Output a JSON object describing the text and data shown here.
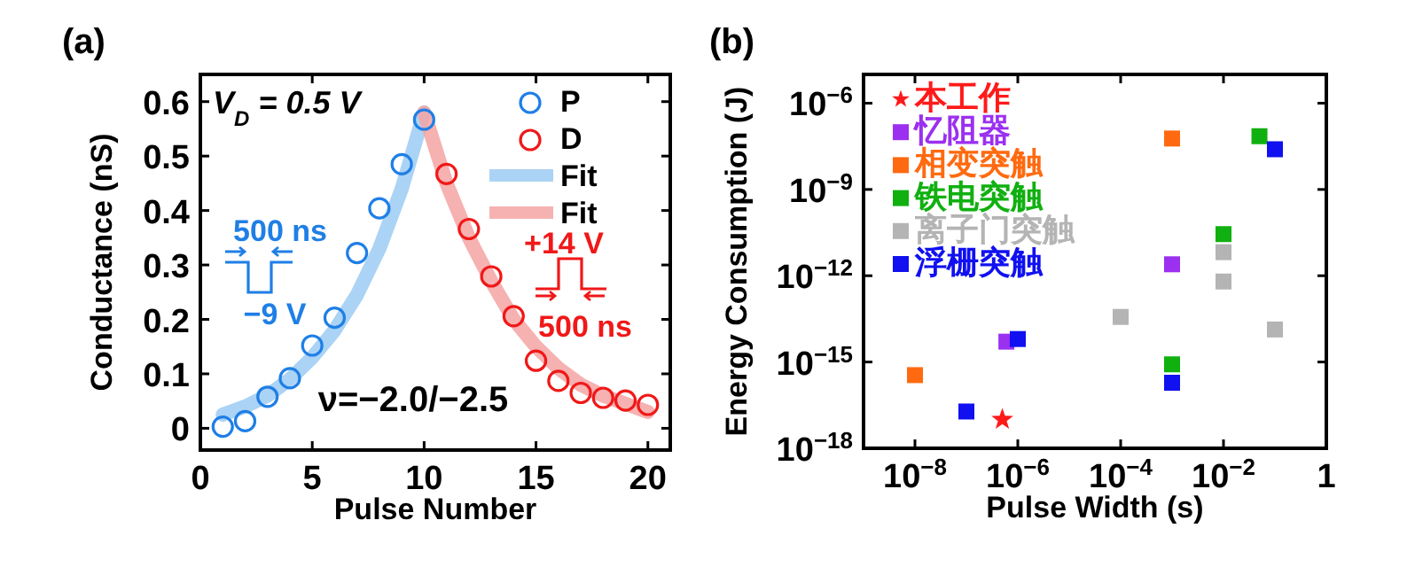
{
  "chart_data": [
    {
      "type": "scatter",
      "title": "(a)",
      "xlabel": "Pulse Number",
      "ylabel": "Conductance (nS)",
      "xlim": [
        0,
        21
      ],
      "ylim": [
        -0.04,
        0.65
      ],
      "xticks": [
        0,
        5,
        10,
        15,
        20
      ],
      "yticks": [
        0,
        0.1,
        0.2,
        0.3,
        0.4,
        0.5,
        0.6
      ],
      "grid": false,
      "legend": "top right",
      "series": [
        {
          "name": "P",
          "type": "scatter",
          "marker": "circle",
          "color": "#1f7fe6",
          "x": [
            1,
            2,
            3,
            4,
            5,
            6,
            7,
            8,
            9,
            10
          ],
          "values": [
            0.003,
            0.013,
            0.058,
            0.092,
            0.152,
            0.203,
            0.322,
            0.404,
            0.485,
            0.567
          ]
        },
        {
          "name": "D",
          "type": "scatter",
          "marker": "circle",
          "color": "#f01818",
          "x": [
            11,
            12,
            13,
            14,
            15,
            16,
            17,
            18,
            19,
            20
          ],
          "values": [
            0.467,
            0.366,
            0.279,
            0.206,
            0.124,
            0.087,
            0.065,
            0.056,
            0.051,
            0.043
          ]
        },
        {
          "name": "Fit",
          "type": "line",
          "color": "#9ccbf3",
          "x": [
            1,
            2,
            3,
            4,
            5,
            6,
            7,
            8,
            9,
            10
          ],
          "values": [
            0.025,
            0.04,
            0.06,
            0.09,
            0.13,
            0.18,
            0.245,
            0.33,
            0.44,
            0.58
          ]
        },
        {
          "name": "Fit",
          "type": "line",
          "color": "#f5a3a3",
          "x": [
            10,
            11,
            12,
            13,
            14,
            15,
            16,
            17,
            18,
            19,
            20
          ],
          "values": [
            0.58,
            0.45,
            0.35,
            0.27,
            0.2,
            0.15,
            0.11,
            0.08,
            0.06,
            0.045,
            0.03
          ]
        }
      ],
      "annotations": [
        "V$_{D}$ = 0.5 V",
        "ν=−2.0/−2.5",
        "500 ns",
        "−9 V",
        "+14 V",
        "500 ns"
      ]
    },
    {
      "type": "scatter",
      "title": "(b)",
      "xlabel": "Pulse Width (s)",
      "ylabel": "Energy Consumption (J)",
      "log": "xy",
      "xlim": [
        1e-09,
        1
      ],
      "ylim": [
        1e-18,
        1e-05
      ],
      "xticks": [
        {
          "value": 1e-08,
          "label": "10$^{−8}$"
        },
        {
          "value": 1e-06,
          "label": "10$^{−6}$"
        },
        {
          "value": 0.0001,
          "label": "10$^{−4}$"
        },
        {
          "value": 0.01,
          "label": "10$^{−2}$"
        },
        1
      ],
      "yticks": [
        {
          "value": 1e-18,
          "label": "10$^{−18}$"
        },
        {
          "value": 1e-15,
          "label": "10$^{−15}$"
        },
        {
          "value": 1e-12,
          "label": "10$^{−12}$"
        },
        {
          "value": 1e-09,
          "label": "10$^{−9}$"
        },
        {
          "value": 1e-06,
          "label": "10$^{−6}$"
        }
      ],
      "grid": false,
      "legend": "top left",
      "series": [
        {
          "name": "本工作",
          "marker": "star",
          "color": "#ff1a1a",
          "x": [
            5e-07
          ],
          "values": [
            1e-17
          ]
        },
        {
          "name": "忆阻器",
          "marker": "square",
          "color": "#9b30f0",
          "x": [
            6e-07,
            0.001
          ],
          "values": [
            5.1e-15,
            2.5e-12
          ]
        },
        {
          "name": "相变突触",
          "marker": "square",
          "color": "#ff6a10",
          "x": [
            1e-08,
            0.001
          ],
          "values": [
            3.5e-16,
            5.9e-08
          ]
        },
        {
          "name": "铁电突触",
          "marker": "square",
          "color": "#10b010",
          "x": [
            0.001,
            0.01,
            0.05
          ],
          "values": [
            8.3e-16,
            2.8e-11,
            7.1e-08
          ]
        },
        {
          "name": "离子门突触",
          "marker": "square",
          "color": "#b4b4b4",
          "x": [
            0.0001,
            0.01,
            0.01,
            0.1
          ],
          "values": [
            3.7e-14,
            6.6e-12,
            6.3e-13,
            1.35e-14
          ]
        },
        {
          "name": "浮栅突触",
          "marker": "square",
          "color": "#1010f0",
          "x": [
            1e-07,
            1e-06,
            0.001,
            0.1
          ],
          "values": [
            1.9e-17,
            6.3e-15,
            1.9e-16,
            2.5e-08
          ]
        }
      ]
    }
  ]
}
